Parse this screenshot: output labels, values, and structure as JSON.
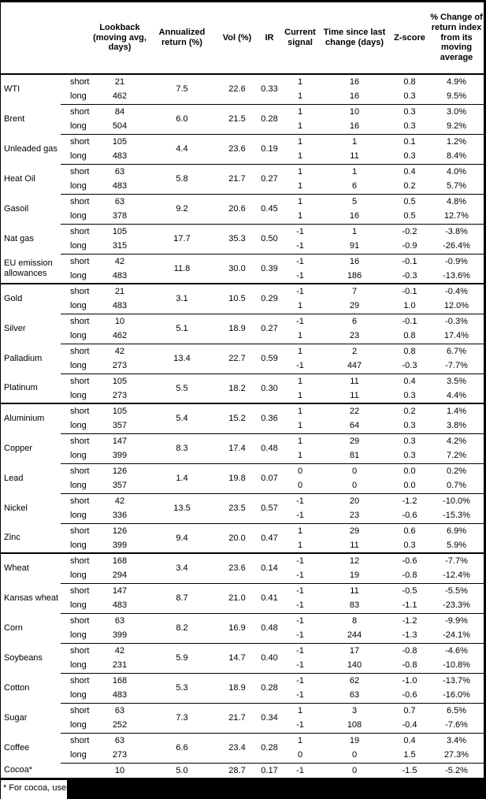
{
  "colors": {
    "text": "#000000",
    "background": "#ffffff",
    "border": "#000000",
    "redaction": "#000000"
  },
  "table": {
    "columns": [
      "",
      "",
      "Lookback (moving avg, days)",
      "Annualized return (%)",
      "Vol (%)",
      "IR",
      "Current signal",
      "Time since last change (days)",
      "Z-score",
      "% Change of return index from its moving average"
    ],
    "groups": [
      {
        "name": "WTI",
        "section_start": false,
        "annualized": "7.5",
        "vol": "22.6",
        "ir": "0.33",
        "rows": [
          {
            "leg": "short",
            "lookback": "21",
            "signal": "1",
            "days": "16",
            "zscore": "0.8",
            "pct": "4.9%"
          },
          {
            "leg": "long",
            "lookback": "462",
            "signal": "1",
            "days": "16",
            "zscore": "0.3",
            "pct": "9.5%"
          }
        ]
      },
      {
        "name": "Brent",
        "section_start": false,
        "annualized": "6.0",
        "vol": "21.5",
        "ir": "0.28",
        "rows": [
          {
            "leg": "short",
            "lookback": "84",
            "signal": "1",
            "days": "10",
            "zscore": "0.3",
            "pct": "3.0%"
          },
          {
            "leg": "long",
            "lookback": "504",
            "signal": "1",
            "days": "16",
            "zscore": "0.3",
            "pct": "9.2%"
          }
        ]
      },
      {
        "name": "Unleaded gas",
        "section_start": false,
        "annualized": "4.4",
        "vol": "23.6",
        "ir": "0.19",
        "rows": [
          {
            "leg": "short",
            "lookback": "105",
            "signal": "1",
            "days": "1",
            "zscore": "0.1",
            "pct": "1.2%"
          },
          {
            "leg": "long",
            "lookback": "483",
            "signal": "1",
            "days": "11",
            "zscore": "0.3",
            "pct": "8.4%"
          }
        ]
      },
      {
        "name": "Heat Oil",
        "section_start": false,
        "annualized": "5.8",
        "vol": "21.7",
        "ir": "0.27",
        "rows": [
          {
            "leg": "short",
            "lookback": "63",
            "signal": "1",
            "days": "1",
            "zscore": "0.4",
            "pct": "4.0%"
          },
          {
            "leg": "long",
            "lookback": "483",
            "signal": "1",
            "days": "6",
            "zscore": "0.2",
            "pct": "5.7%"
          }
        ]
      },
      {
        "name": "Gasoil",
        "section_start": false,
        "annualized": "9.2",
        "vol": "20.6",
        "ir": "0.45",
        "rows": [
          {
            "leg": "short",
            "lookback": "63",
            "signal": "1",
            "days": "5",
            "zscore": "0.5",
            "pct": "4.8%"
          },
          {
            "leg": "long",
            "lookback": "378",
            "signal": "1",
            "days": "16",
            "zscore": "0.5",
            "pct": "12.7%"
          }
        ]
      },
      {
        "name": "Nat gas",
        "section_start": false,
        "annualized": "17.7",
        "vol": "35.3",
        "ir": "0.50",
        "rows": [
          {
            "leg": "short",
            "lookback": "105",
            "signal": "-1",
            "days": "1",
            "zscore": "-0.2",
            "pct": "-3.8%"
          },
          {
            "leg": "long",
            "lookback": "315",
            "signal": "-1",
            "days": "91",
            "zscore": "-0.9",
            "pct": "-26.4%"
          }
        ]
      },
      {
        "name": "EU emission allowances",
        "section_start": false,
        "annualized": "11.8",
        "vol": "30.0",
        "ir": "0.39",
        "rows": [
          {
            "leg": "short",
            "lookback": "42",
            "signal": "-1",
            "days": "16",
            "zscore": "-0.1",
            "pct": "-0.9%"
          },
          {
            "leg": "long",
            "lookback": "483",
            "signal": "-1",
            "days": "186",
            "zscore": "-0.3",
            "pct": "-13.6%"
          }
        ]
      },
      {
        "name": "Gold",
        "section_start": true,
        "annualized": "3.1",
        "vol": "10.5",
        "ir": "0.29",
        "rows": [
          {
            "leg": "short",
            "lookback": "21",
            "signal": "-1",
            "days": "7",
            "zscore": "-0.1",
            "pct": "-0.4%"
          },
          {
            "leg": "long",
            "lookback": "483",
            "signal": "1",
            "days": "29",
            "zscore": "1.0",
            "pct": "12.0%"
          }
        ]
      },
      {
        "name": "Silver",
        "section_start": false,
        "annualized": "5.1",
        "vol": "18.9",
        "ir": "0.27",
        "rows": [
          {
            "leg": "short",
            "lookback": "10",
            "signal": "-1",
            "days": "6",
            "zscore": "-0.1",
            "pct": "-0.3%"
          },
          {
            "leg": "long",
            "lookback": "462",
            "signal": "1",
            "days": "23",
            "zscore": "0.8",
            "pct": "17.4%"
          }
        ]
      },
      {
        "name": "Palladium",
        "section_start": false,
        "annualized": "13.4",
        "vol": "22.7",
        "ir": "0.59",
        "rows": [
          {
            "leg": "short",
            "lookback": "42",
            "signal": "1",
            "days": "2",
            "zscore": "0.8",
            "pct": "6.7%"
          },
          {
            "leg": "long",
            "lookback": "273",
            "signal": "-1",
            "days": "447",
            "zscore": "-0.3",
            "pct": "-7.7%"
          }
        ]
      },
      {
        "name": "Platinum",
        "section_start": false,
        "annualized": "5.5",
        "vol": "18.2",
        "ir": "0.30",
        "rows": [
          {
            "leg": "short",
            "lookback": "105",
            "signal": "1",
            "days": "11",
            "zscore": "0.4",
            "pct": "3.5%"
          },
          {
            "leg": "long",
            "lookback": "273",
            "signal": "1",
            "days": "11",
            "zscore": "0.3",
            "pct": "4.4%"
          }
        ]
      },
      {
        "name": "Aluminium",
        "section_start": true,
        "annualized": "5.4",
        "vol": "15.2",
        "ir": "0.36",
        "rows": [
          {
            "leg": "short",
            "lookback": "105",
            "signal": "1",
            "days": "22",
            "zscore": "0.2",
            "pct": "1.4%"
          },
          {
            "leg": "long",
            "lookback": "357",
            "signal": "1",
            "days": "64",
            "zscore": "0.3",
            "pct": "3.8%"
          }
        ]
      },
      {
        "name": "Copper",
        "section_start": false,
        "annualized": "8.3",
        "vol": "17.4",
        "ir": "0.48",
        "rows": [
          {
            "leg": "short",
            "lookback": "147",
            "signal": "1",
            "days": "29",
            "zscore": "0.3",
            "pct": "4.2%"
          },
          {
            "leg": "long",
            "lookback": "399",
            "signal": "1",
            "days": "81",
            "zscore": "0.3",
            "pct": "7.2%"
          }
        ]
      },
      {
        "name": "Lead",
        "section_start": false,
        "annualized": "1.4",
        "vol": "19.8",
        "ir": "0.07",
        "rows": [
          {
            "leg": "short",
            "lookback": "126",
            "signal": "0",
            "days": "0",
            "zscore": "0.0",
            "pct": "0.2%"
          },
          {
            "leg": "long",
            "lookback": "357",
            "signal": "0",
            "days": "0",
            "zscore": "0.0",
            "pct": "0.7%"
          }
        ]
      },
      {
        "name": "Nickel",
        "section_start": false,
        "annualized": "13.5",
        "vol": "23.5",
        "ir": "0.57",
        "rows": [
          {
            "leg": "short",
            "lookback": "42",
            "signal": "-1",
            "days": "20",
            "zscore": "-1.2",
            "pct": "-10.0%"
          },
          {
            "leg": "long",
            "lookback": "336",
            "signal": "-1",
            "days": "23",
            "zscore": "-0.6",
            "pct": "-15.3%"
          }
        ]
      },
      {
        "name": "Zinc",
        "section_start": false,
        "annualized": "9.4",
        "vol": "20.0",
        "ir": "0.47",
        "rows": [
          {
            "leg": "short",
            "lookback": "126",
            "signal": "1",
            "days": "29",
            "zscore": "0.6",
            "pct": "6.9%"
          },
          {
            "leg": "long",
            "lookback": "399",
            "signal": "1",
            "days": "11",
            "zscore": "0.3",
            "pct": "5.9%"
          }
        ]
      },
      {
        "name": "Wheat",
        "section_start": true,
        "annualized": "3.4",
        "vol": "23.6",
        "ir": "0.14",
        "rows": [
          {
            "leg": "short",
            "lookback": "168",
            "signal": "-1",
            "days": "12",
            "zscore": "-0.6",
            "pct": "-7.7%"
          },
          {
            "leg": "long",
            "lookback": "294",
            "signal": "-1",
            "days": "19",
            "zscore": "-0.8",
            "pct": "-12.4%"
          }
        ]
      },
      {
        "name": "Kansas wheat",
        "section_start": false,
        "annualized": "8.7",
        "vol": "21.0",
        "ir": "0.41",
        "rows": [
          {
            "leg": "short",
            "lookback": "147",
            "signal": "-1",
            "days": "11",
            "zscore": "-0.5",
            "pct": "-5.5%"
          },
          {
            "leg": "long",
            "lookback": "483",
            "signal": "-1",
            "days": "83",
            "zscore": "-1.1",
            "pct": "-23.3%"
          }
        ]
      },
      {
        "name": "Corn",
        "section_start": false,
        "annualized": "8.2",
        "vol": "16.9",
        "ir": "0.48",
        "rows": [
          {
            "leg": "short",
            "lookback": "63",
            "signal": "-1",
            "days": "8",
            "zscore": "-1.2",
            "pct": "-9.9%"
          },
          {
            "leg": "long",
            "lookback": "399",
            "signal": "-1",
            "days": "244",
            "zscore": "-1.3",
            "pct": "-24.1%"
          }
        ]
      },
      {
        "name": "Soybeans",
        "section_start": false,
        "annualized": "5.9",
        "vol": "14.7",
        "ir": "0.40",
        "rows": [
          {
            "leg": "short",
            "lookback": "42",
            "signal": "-1",
            "days": "17",
            "zscore": "-0.8",
            "pct": "-4.6%"
          },
          {
            "leg": "long",
            "lookback": "231",
            "signal": "-1",
            "days": "140",
            "zscore": "-0.8",
            "pct": "-10.8%"
          }
        ]
      },
      {
        "name": "Cotton",
        "section_start": false,
        "annualized": "5.3",
        "vol": "18.9",
        "ir": "0.28",
        "rows": [
          {
            "leg": "short",
            "lookback": "168",
            "signal": "-1",
            "days": "62",
            "zscore": "-1.0",
            "pct": "-13.7%"
          },
          {
            "leg": "long",
            "lookback": "483",
            "signal": "-1",
            "days": "63",
            "zscore": "-0.6",
            "pct": "-16.0%"
          }
        ]
      },
      {
        "name": "Sugar",
        "section_start": false,
        "annualized": "7.3",
        "vol": "21.7",
        "ir": "0.34",
        "rows": [
          {
            "leg": "short",
            "lookback": "63",
            "signal": "1",
            "days": "3",
            "zscore": "0.7",
            "pct": "6.5%"
          },
          {
            "leg": "long",
            "lookback": "252",
            "signal": "-1",
            "days": "108",
            "zscore": "-0.4",
            "pct": "-7.6%"
          }
        ]
      },
      {
        "name": "Coffee",
        "section_start": false,
        "annualized": "6.6",
        "vol": "23.4",
        "ir": "0.28",
        "rows": [
          {
            "leg": "short",
            "lookback": "63",
            "signal": "1",
            "days": "19",
            "zscore": "0.4",
            "pct": "3.4%"
          },
          {
            "leg": "long",
            "lookback": "273",
            "signal": "0",
            "days": "0",
            "zscore": "1.5",
            "pct": "27.3%"
          }
        ]
      },
      {
        "name": "Cocoa*",
        "section_start": false,
        "annualized": "5.0",
        "vol": "28.7",
        "ir": "0.17",
        "rows": [
          {
            "leg": "",
            "lookback": "10",
            "signal": "-1",
            "days": "0",
            "zscore": "-1.5",
            "pct": "-5.2%"
          }
        ]
      }
    ]
  },
  "footnote": {
    "text": "* For cocoa, uses",
    "redacted": true
  }
}
